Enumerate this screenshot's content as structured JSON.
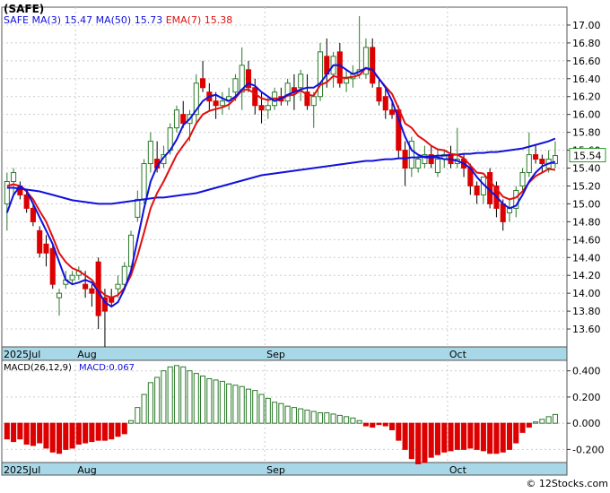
{
  "header": {
    "title": "(SAFE)"
  },
  "legend": {
    "symbol": "SAFE",
    "items": [
      {
        "label": "MA(3)",
        "value": "15.47",
        "color": "#1010dd"
      },
      {
        "label": "MA(50)",
        "value": "15.73",
        "color": "#1010dd"
      },
      {
        "label": "EMA(7)",
        "value": "15.38",
        "color": "#e01010"
      }
    ]
  },
  "macd_legend": {
    "label": "MACD(26,12,9)",
    "value_label": "MACD:0.067"
  },
  "last_price_tag": "15.54",
  "footer": {
    "copyright": "© 12Stocks.com"
  },
  "colors": {
    "up": "#2a7a2a",
    "down": "#dd0000",
    "ma": "#1010dd",
    "ema": "#e01010",
    "axis_band": "#a8d8e8",
    "grid": "#cccccc"
  },
  "chart_data": [
    {
      "type": "candlestick",
      "title": "(SAFE)",
      "y_ticks": [
        "13.60",
        "13.80",
        "14.00",
        "14.20",
        "14.40",
        "14.60",
        "14.80",
        "15.00",
        "15.20",
        "15.40",
        "15.60",
        "15.80",
        "16.00",
        "16.20",
        "16.40",
        "16.60",
        "16.80",
        "17.00"
      ],
      "ylim": [
        13.4,
        17.2
      ],
      "x_labels": [
        {
          "label": "2025Jul",
          "index": 0
        },
        {
          "label": "Aug",
          "index": 11
        },
        {
          "label": "Sep",
          "index": 40
        },
        {
          "label": "Oct",
          "index": 68
        }
      ],
      "ohlc": [
        [
          15.0,
          15.35,
          14.7,
          15.25
        ],
        [
          15.25,
          15.4,
          15.1,
          15.35
        ],
        [
          15.2,
          15.25,
          15.05,
          15.1
        ],
        [
          15.1,
          15.15,
          14.9,
          14.95
        ],
        [
          14.95,
          15.0,
          14.75,
          14.8
        ],
        [
          14.7,
          14.75,
          14.4,
          14.45
        ],
        [
          14.55,
          14.65,
          14.3,
          14.45
        ],
        [
          14.5,
          14.55,
          14.05,
          14.1
        ],
        [
          13.95,
          14.05,
          13.75,
          14.0
        ],
        [
          14.1,
          14.25,
          14.05,
          14.15
        ],
        [
          14.15,
          14.25,
          14.1,
          14.2
        ],
        [
          14.2,
          14.3,
          14.15,
          14.25
        ],
        [
          14.1,
          14.25,
          13.95,
          14.05
        ],
        [
          14.05,
          14.1,
          13.85,
          14.0
        ],
        [
          14.35,
          14.4,
          13.6,
          13.75
        ],
        [
          13.95,
          14.05,
          13.4,
          13.8
        ],
        [
          13.95,
          14.05,
          13.85,
          13.9
        ],
        [
          14.05,
          14.2,
          13.95,
          14.1
        ],
        [
          14.1,
          14.35,
          14.05,
          14.3
        ],
        [
          14.3,
          14.7,
          14.25,
          14.65
        ],
        [
          14.85,
          15.15,
          14.8,
          15.05
        ],
        [
          15.05,
          15.5,
          15.0,
          15.45
        ],
        [
          15.45,
          15.8,
          15.35,
          15.7
        ],
        [
          15.5,
          15.7,
          15.35,
          15.4
        ],
        [
          15.45,
          15.65,
          15.4,
          15.55
        ],
        [
          15.6,
          15.9,
          15.55,
          15.85
        ],
        [
          15.85,
          16.1,
          15.8,
          16.05
        ],
        [
          16.0,
          16.15,
          15.85,
          15.9
        ],
        [
          15.9,
          16.05,
          15.7,
          16.0
        ],
        [
          16.0,
          16.45,
          15.9,
          16.35
        ],
        [
          16.4,
          16.6,
          16.25,
          16.3
        ],
        [
          16.25,
          16.35,
          16.05,
          16.15
        ],
        [
          16.15,
          16.25,
          15.95,
          16.1
        ],
        [
          16.1,
          16.25,
          16.0,
          16.15
        ],
        [
          16.15,
          16.3,
          16.05,
          16.2
        ],
        [
          16.25,
          16.45,
          16.15,
          16.4
        ],
        [
          16.25,
          16.75,
          16.05,
          16.55
        ],
        [
          16.5,
          16.6,
          16.25,
          16.3
        ],
        [
          16.3,
          16.4,
          16.0,
          16.1
        ],
        [
          16.1,
          16.25,
          15.9,
          16.05
        ],
        [
          16.05,
          16.2,
          15.95,
          16.1
        ],
        [
          16.1,
          16.3,
          16.05,
          16.25
        ],
        [
          16.2,
          16.3,
          16.1,
          16.15
        ],
        [
          16.15,
          16.4,
          16.1,
          16.35
        ],
        [
          16.3,
          16.45,
          16.05,
          16.25
        ],
        [
          16.3,
          16.5,
          16.15,
          16.45
        ],
        [
          16.25,
          16.45,
          16.05,
          16.1
        ],
        [
          16.1,
          16.25,
          15.85,
          16.2
        ],
        [
          16.2,
          16.8,
          16.15,
          16.7
        ],
        [
          16.65,
          16.85,
          16.3,
          16.45
        ],
        [
          16.45,
          16.7,
          16.3,
          16.65
        ],
        [
          16.7,
          16.8,
          16.3,
          16.35
        ],
        [
          16.35,
          16.5,
          16.25,
          16.4
        ],
        [
          16.4,
          16.55,
          16.3,
          16.45
        ],
        [
          16.45,
          17.1,
          16.4,
          16.5
        ],
        [
          16.45,
          16.85,
          16.4,
          16.75
        ],
        [
          16.75,
          16.85,
          16.3,
          16.35
        ],
        [
          16.3,
          16.4,
          16.1,
          16.15
        ],
        [
          16.2,
          16.3,
          15.95,
          16.05
        ],
        [
          16.05,
          16.15,
          15.95,
          16.0
        ],
        [
          16.05,
          16.1,
          15.5,
          15.6
        ],
        [
          15.6,
          15.7,
          15.2,
          15.4
        ],
        [
          15.4,
          15.75,
          15.3,
          15.7
        ],
        [
          15.4,
          15.55,
          15.35,
          15.5
        ],
        [
          15.45,
          15.65,
          15.4,
          15.55
        ],
        [
          15.55,
          15.65,
          15.4,
          15.45
        ],
        [
          15.35,
          15.6,
          15.3,
          15.5
        ],
        [
          15.5,
          15.6,
          15.4,
          15.55
        ],
        [
          15.55,
          15.65,
          15.4,
          15.45
        ],
        [
          15.45,
          15.85,
          15.4,
          15.5
        ],
        [
          15.5,
          15.55,
          15.3,
          15.4
        ],
        [
          15.4,
          15.45,
          15.1,
          15.2
        ],
        [
          15.2,
          15.25,
          15.0,
          15.1
        ],
        [
          15.1,
          15.3,
          15.0,
          15.3
        ],
        [
          15.35,
          15.4,
          14.95,
          15.0
        ],
        [
          15.2,
          15.25,
          14.85,
          14.95
        ],
        [
          15.0,
          15.05,
          14.7,
          14.8
        ],
        [
          14.9,
          15.05,
          14.8,
          14.95
        ],
        [
          14.95,
          15.2,
          14.85,
          15.15
        ],
        [
          15.2,
          15.4,
          15.15,
          15.35
        ],
        [
          15.35,
          15.8,
          15.3,
          15.55
        ],
        [
          15.55,
          15.65,
          15.45,
          15.5
        ],
        [
          15.5,
          15.55,
          15.35,
          15.45
        ],
        [
          15.4,
          15.6,
          15.35,
          15.5
        ],
        [
          15.45,
          15.7,
          15.4,
          15.54
        ]
      ],
      "ma3": [
        14.9,
        15.1,
        15.2,
        15.15,
        15.0,
        14.85,
        14.7,
        14.55,
        14.35,
        14.15,
        14.1,
        14.12,
        14.15,
        14.12,
        14.02,
        13.9,
        13.85,
        13.9,
        14.05,
        14.25,
        14.6,
        14.95,
        15.25,
        15.42,
        15.52,
        15.6,
        15.72,
        15.88,
        15.95,
        16.05,
        16.15,
        16.2,
        16.22,
        16.18,
        16.15,
        16.2,
        16.28,
        16.35,
        16.32,
        16.25,
        16.2,
        16.15,
        16.18,
        16.22,
        16.25,
        16.28,
        16.3,
        16.3,
        16.35,
        16.45,
        16.55,
        16.55,
        16.5,
        16.45,
        16.48,
        16.52,
        16.5,
        16.4,
        16.3,
        16.15,
        15.95,
        15.75,
        15.6,
        15.55,
        15.52,
        15.52,
        15.52,
        15.5,
        15.5,
        15.48,
        15.45,
        15.4,
        15.3,
        15.22,
        15.15,
        15.08,
        15.0,
        14.95,
        14.98,
        15.1,
        15.25,
        15.35,
        15.42,
        15.45,
        15.47
      ],
      "ma50": [
        15.18,
        15.18,
        15.17,
        15.16,
        15.15,
        15.14,
        15.12,
        15.1,
        15.08,
        15.06,
        15.04,
        15.03,
        15.02,
        15.01,
        15.0,
        15.0,
        15.0,
        15.01,
        15.02,
        15.03,
        15.04,
        15.05,
        15.06,
        15.07,
        15.07,
        15.08,
        15.09,
        15.1,
        15.11,
        15.12,
        15.14,
        15.16,
        15.18,
        15.2,
        15.22,
        15.24,
        15.26,
        15.28,
        15.3,
        15.32,
        15.33,
        15.34,
        15.35,
        15.36,
        15.37,
        15.38,
        15.39,
        15.4,
        15.41,
        15.42,
        15.43,
        15.44,
        15.45,
        15.46,
        15.47,
        15.48,
        15.48,
        15.49,
        15.5,
        15.5,
        15.51,
        15.51,
        15.52,
        15.52,
        15.53,
        15.53,
        15.54,
        15.54,
        15.55,
        15.55,
        15.56,
        15.56,
        15.57,
        15.57,
        15.58,
        15.58,
        15.59,
        15.6,
        15.61,
        15.62,
        15.64,
        15.66,
        15.68,
        15.7,
        15.73
      ],
      "ema7": [
        15.2,
        15.22,
        15.2,
        15.14,
        15.05,
        14.92,
        14.8,
        14.63,
        14.45,
        14.35,
        14.28,
        14.25,
        14.2,
        14.15,
        14.05,
        13.98,
        13.95,
        13.98,
        14.06,
        14.2,
        14.42,
        14.68,
        14.95,
        15.12,
        15.25,
        15.4,
        15.55,
        15.65,
        15.75,
        15.9,
        16.0,
        16.04,
        16.06,
        16.08,
        16.11,
        16.18,
        16.27,
        16.28,
        16.23,
        16.18,
        16.16,
        16.18,
        16.17,
        16.21,
        16.22,
        16.27,
        16.22,
        16.21,
        16.33,
        16.36,
        16.43,
        16.41,
        16.41,
        16.42,
        16.44,
        16.52,
        16.48,
        16.4,
        16.31,
        16.23,
        16.07,
        15.9,
        15.85,
        15.76,
        15.71,
        15.65,
        15.61,
        15.6,
        15.56,
        15.55,
        15.51,
        15.43,
        15.35,
        15.34,
        15.25,
        15.17,
        15.08,
        15.05,
        15.07,
        15.14,
        15.24,
        15.31,
        15.35,
        15.39,
        15.38
      ]
    },
    {
      "type": "bar",
      "title": "MACD(26,12,9)",
      "y_ticks": [
        "0.400",
        "0.200",
        "0.000",
        "-0.200"
      ],
      "ylim": [
        -0.3,
        0.48
      ],
      "values": [
        -0.12,
        -0.14,
        -0.12,
        -0.16,
        -0.17,
        -0.15,
        -0.19,
        -0.22,
        -0.23,
        -0.2,
        -0.19,
        -0.16,
        -0.15,
        -0.14,
        -0.13,
        -0.13,
        -0.12,
        -0.1,
        -0.08,
        0.02,
        0.12,
        0.22,
        0.31,
        0.35,
        0.4,
        0.43,
        0.44,
        0.43,
        0.4,
        0.38,
        0.36,
        0.34,
        0.33,
        0.32,
        0.3,
        0.29,
        0.28,
        0.26,
        0.25,
        0.22,
        0.19,
        0.16,
        0.15,
        0.13,
        0.12,
        0.11,
        0.1,
        0.09,
        0.08,
        0.08,
        0.07,
        0.06,
        0.05,
        0.04,
        0.02,
        -0.02,
        -0.03,
        -0.01,
        -0.02,
        -0.05,
        -0.13,
        -0.2,
        -0.27,
        -0.31,
        -0.3,
        -0.26,
        -0.24,
        -0.22,
        -0.21,
        -0.2,
        -0.2,
        -0.19,
        -0.2,
        -0.21,
        -0.23,
        -0.23,
        -0.22,
        -0.2,
        -0.15,
        -0.07,
        -0.03,
        0.01,
        0.03,
        0.05,
        0.067
      ]
    }
  ]
}
